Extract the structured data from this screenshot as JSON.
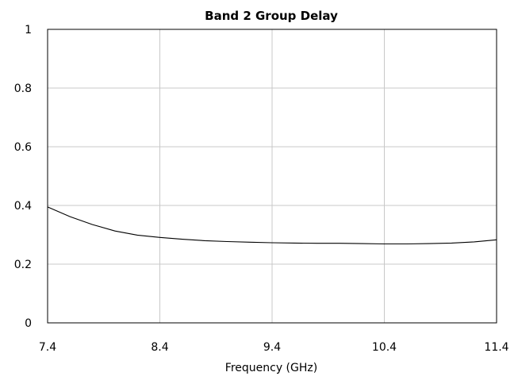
{
  "chart_data": {
    "type": "line",
    "title": "Band 2 Group Delay",
    "xlabel": "Frequency (GHz)",
    "ylabel": "",
    "xlim": [
      7.4,
      11.4
    ],
    "ylim": [
      0,
      1
    ],
    "x_ticks": [
      "7.4",
      "8.4",
      "9.4",
      "10.4",
      "11.4"
    ],
    "y_ticks": [
      "0",
      "0.2",
      "0.4",
      "0.6",
      "0.8",
      "1"
    ],
    "x_tick_values": [
      7.4,
      8.4,
      9.4,
      10.4,
      11.4
    ],
    "y_tick_values": [
      0,
      0.2,
      0.4,
      0.6,
      0.8,
      1
    ],
    "grid": true,
    "series": [
      {
        "color": "#000000",
        "x": [
          7.4,
          7.6,
          7.8,
          8.0,
          8.2,
          8.4,
          8.6,
          8.8,
          9.0,
          9.2,
          9.4,
          9.6,
          9.8,
          10.0,
          10.2,
          10.4,
          10.6,
          10.8,
          11.0,
          11.2,
          11.4
        ],
        "y": [
          0.395,
          0.362,
          0.335,
          0.313,
          0.299,
          0.291,
          0.285,
          0.28,
          0.277,
          0.275,
          0.273,
          0.272,
          0.271,
          0.271,
          0.27,
          0.269,
          0.269,
          0.27,
          0.272,
          0.276,
          0.283
        ]
      }
    ]
  }
}
